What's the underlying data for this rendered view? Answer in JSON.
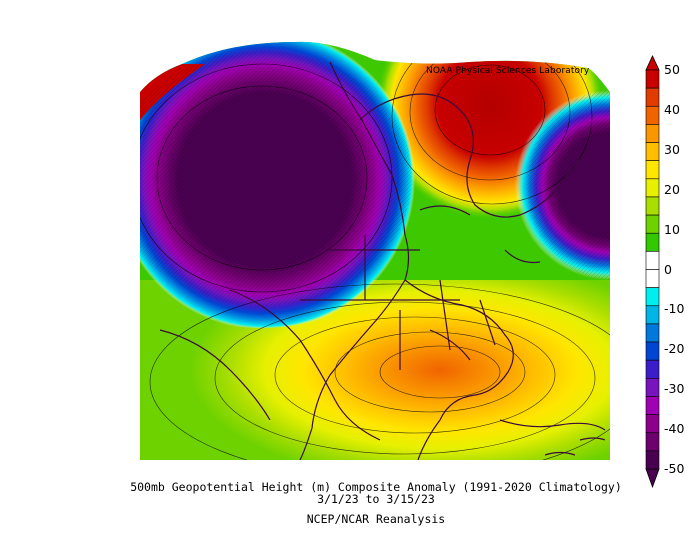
{
  "lab_label": "NOAA Physical Sciences Laboratory",
  "caption": {
    "line1": "500mb Geopotential Height (m) Composite Anomaly (1991-2020 Climatology)",
    "line2": "3/1/23  to 3/15/23",
    "line3": "NCEP/NCAR Reanalysis"
  },
  "colorbar": {
    "ticks": [
      "50",
      "40",
      "30",
      "20",
      "10",
      "0",
      "-10",
      "-20",
      "-30",
      "-40",
      "-50"
    ],
    "colors": [
      "#c80000",
      "#e03c00",
      "#f06400",
      "#fa9600",
      "#ffbe00",
      "#ffe600",
      "#e6f000",
      "#aade00",
      "#6ed200",
      "#32c800",
      "#ffffff",
      "#ffffff",
      "#00eef0",
      "#00b4e6",
      "#0078dc",
      "#0046d2",
      "#3c1ec8",
      "#7814be",
      "#a000b4",
      "#8c008c",
      "#6e006e",
      "#4a0050"
    ]
  }
}
